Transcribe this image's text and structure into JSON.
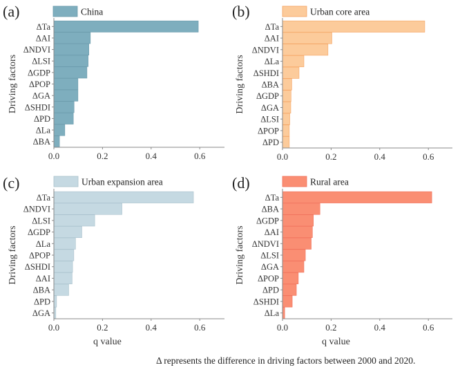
{
  "chart_data": [
    {
      "type": "bar",
      "orientation": "horizontal",
      "panel": "(a)",
      "legend": "China",
      "color": "#7eaebe",
      "edge_color": "#6a9aab",
      "categories": [
        "ΔTa",
        "ΔAI",
        "ΔNDVI",
        "ΔLSI",
        "ΔGDP",
        "ΔPOP",
        "ΔGA",
        "ΔSHDI",
        "ΔPD",
        "ΔLa",
        "ΔBA"
      ],
      "values": [
        0.594,
        0.15,
        0.144,
        0.141,
        0.136,
        0.099,
        0.099,
        0.083,
        0.08,
        0.045,
        0.023
      ],
      "xlabel": "",
      "ylabel": "Driving factors",
      "xlim": [
        0,
        0.7
      ],
      "xticks": [
        "0.0",
        "0.2",
        "0.4",
        "0.6"
      ],
      "grid": false,
      "legend_position": "top-left"
    },
    {
      "type": "bar",
      "orientation": "horizontal",
      "panel": "(b)",
      "legend": "Urban core area",
      "color": "#fccb9b",
      "edge_color": "#f4a260",
      "categories": [
        "ΔTa",
        "ΔAI",
        "ΔNDVI",
        "ΔLa",
        "ΔSHDI",
        "ΔBA",
        "ΔGDP",
        "ΔGA",
        "ΔLSI",
        "ΔPOP",
        "ΔPD"
      ],
      "values": [
        0.585,
        0.203,
        0.187,
        0.088,
        0.068,
        0.038,
        0.035,
        0.034,
        0.03,
        0.028,
        0.028
      ],
      "xlabel": "",
      "ylabel": "Driving factors",
      "xlim": [
        0,
        0.7
      ],
      "xticks": [
        "0.0",
        "0.2",
        "0.4",
        "0.6"
      ],
      "grid": false,
      "legend_position": "top-left"
    },
    {
      "type": "bar",
      "orientation": "horizontal",
      "panel": "(c)",
      "legend": "Urban expansion area",
      "color": "#c5d9e2",
      "edge_color": "#a9c1cc",
      "categories": [
        "ΔTa",
        "ΔNDVI",
        "ΔLSI",
        "ΔGDP",
        "ΔLa",
        "ΔPOP",
        "ΔSHDI",
        "ΔAI",
        "ΔBA",
        "ΔPD",
        "ΔGA"
      ],
      "values": [
        0.574,
        0.28,
        0.168,
        0.115,
        0.089,
        0.082,
        0.077,
        0.075,
        0.061,
        0.011,
        0.008
      ],
      "xlabel": "q value",
      "ylabel": "Driving factors",
      "xlim": [
        0,
        0.7
      ],
      "xticks": [
        "0.0",
        "0.2",
        "0.4",
        "0.6"
      ],
      "grid": false,
      "legend_position": "top-left"
    },
    {
      "type": "bar",
      "orientation": "horizontal",
      "panel": "(d)",
      "legend": "Rural area",
      "color": "#fa8e73",
      "edge_color": "#f0705a",
      "categories": [
        "ΔTa",
        "ΔBA",
        "ΔGDP",
        "ΔAI",
        "ΔNDVI",
        "ΔLSI",
        "ΔGA",
        "ΔPOP",
        "ΔPD",
        "ΔSHDI",
        "ΔLa"
      ],
      "values": [
        0.614,
        0.154,
        0.127,
        0.123,
        0.118,
        0.094,
        0.088,
        0.065,
        0.057,
        0.04,
        0.009
      ],
      "xlabel": "q value",
      "ylabel": "Driving factors",
      "xlim": [
        0,
        0.7
      ],
      "xticks": [
        "0.0",
        "0.2",
        "0.4",
        "0.6"
      ],
      "grid": false,
      "legend_position": "top-left"
    }
  ],
  "caption": "Δ represents the difference in driving factors between 2000 and 2020."
}
